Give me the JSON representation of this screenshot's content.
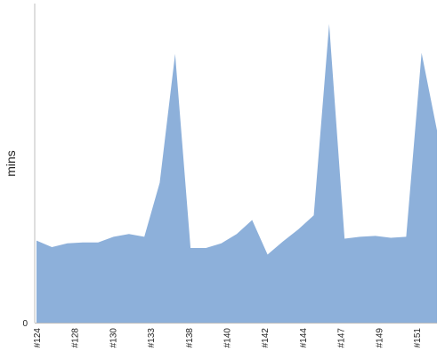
{
  "chart_data": {
    "type": "area",
    "ylabel": "mins",
    "y_tick_labels": [
      "0"
    ],
    "ylim": [
      0,
      34
    ],
    "x_tick_labels": [
      "#124",
      "#128",
      "#130",
      "#133",
      "#138",
      "#140",
      "#142",
      "#144",
      "#147",
      "#149",
      "#151"
    ],
    "series": [
      {
        "values": [
          8.8,
          8.1,
          8.5,
          8.6,
          8.6,
          9.2,
          9.5,
          9.2,
          15.0,
          28.8,
          8.0,
          8.0,
          8.5,
          9.5,
          11.0,
          7.3,
          8.7,
          10.0,
          11.5,
          32.0,
          9.0,
          9.2,
          9.3,
          9.1,
          9.2,
          28.9,
          20.6
        ]
      }
    ],
    "colors": {
      "area": "#8db0da",
      "axis": "#bdbdbd"
    }
  }
}
